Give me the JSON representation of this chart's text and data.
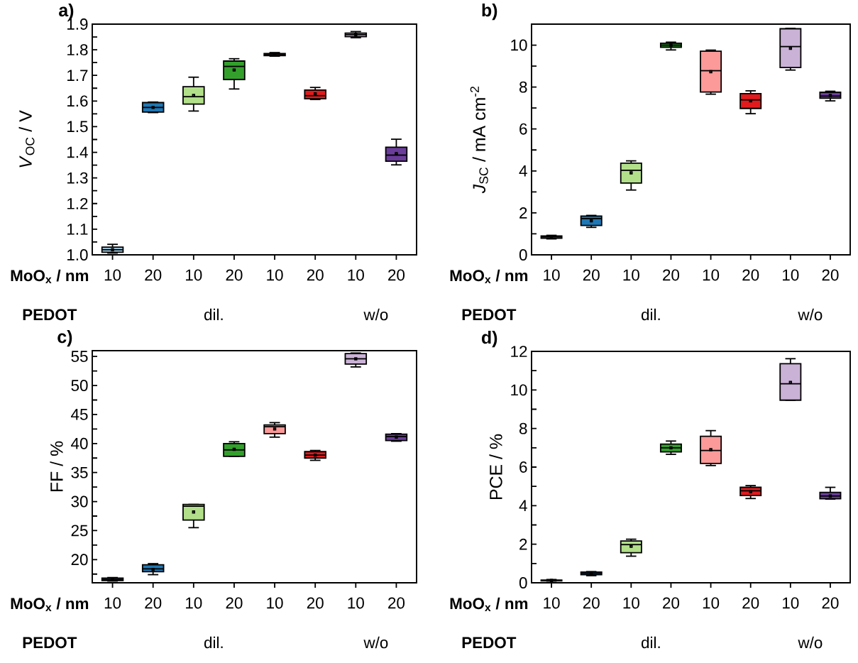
{
  "chart_data": [
    {
      "type": "box",
      "title": "a)",
      "xlabel": "MoO$_{x}$ / nm",
      "ylabel": "*V*$_{OC}$ / V",
      "categories": [
        "10",
        "20",
        "10",
        "20",
        "10",
        "20",
        "10",
        "20"
      ],
      "colors": [
        "#a6cee3",
        "#1f78b4",
        "#b2df8a",
        "#33a02c",
        "#fb9a99",
        "#e31a1c",
        "#cab2d6",
        "#6a3d9a"
      ],
      "boxes": [
        {
          "low": 1.007,
          "q1": 1.01,
          "median": 1.02,
          "q3": 1.03,
          "high": 1.041,
          "mean": 1.02
        },
        {
          "low": 1.555,
          "q1": 1.557,
          "median": 1.575,
          "q3": 1.594,
          "high": 1.596,
          "mean": 1.575
        },
        {
          "low": 1.561,
          "q1": 1.588,
          "median": 1.617,
          "q3": 1.656,
          "high": 1.693,
          "mean": 1.622
        },
        {
          "low": 1.647,
          "q1": 1.684,
          "median": 1.735,
          "q3": 1.756,
          "high": 1.765,
          "mean": 1.721
        },
        {
          "low": 1.775,
          "q1": 1.777,
          "median": 1.781,
          "q3": 1.785,
          "high": 1.789,
          "mean": 1.781
        },
        {
          "low": 1.606,
          "q1": 1.609,
          "median": 1.621,
          "q3": 1.643,
          "high": 1.653,
          "mean": 1.628
        },
        {
          "low": 1.847,
          "q1": 1.851,
          "median": 1.859,
          "q3": 1.865,
          "high": 1.871,
          "mean": 1.859
        },
        {
          "low": 1.351,
          "q1": 1.365,
          "median": 1.389,
          "q3": 1.42,
          "high": 1.451,
          "mean": 1.395
        }
      ],
      "ylim": [
        1.0,
        1.9
      ],
      "yticks": [
        {
          "value": 1.0,
          "label": "1.0"
        },
        {
          "value": 1.05,
          "label": null
        },
        1.1,
        {
          "value": 1.15,
          "label": null
        },
        1.2,
        {
          "value": 1.25,
          "label": null
        },
        1.3,
        {
          "value": 1.35,
          "label": null
        },
        1.4,
        {
          "value": 1.45,
          "label": null
        },
        1.5,
        {
          "value": 1.55,
          "label": null
        },
        1.6,
        {
          "value": 1.65,
          "label": null
        },
        1.7,
        {
          "value": 1.75,
          "label": null
        },
        1.8,
        {
          "value": 1.85,
          "label": null
        },
        1.9
      ],
      "annotations": [
        "PEDOT",
        null,
        "dil.",
        null,
        "w/o"
      ]
    },
    {
      "type": "box",
      "title": "b)",
      "xlabel": "MoO$_{x}$ / nm",
      "ylabel": "*J*$_{SC}$ / mA cm$^{-2}$",
      "categories": [
        "10",
        "20",
        "10",
        "20",
        "10",
        "20",
        "10",
        "20"
      ],
      "colors": [
        "#a6cee3",
        "#1f78b4",
        "#b2df8a",
        "#33a02c",
        "#fb9a99",
        "#e31a1c",
        "#cab2d6",
        "#6a3d9a"
      ],
      "boxes": [
        {
          "low": 0.76,
          "q1": 0.79,
          "median": 0.85,
          "q3": 0.9,
          "high": 0.93,
          "mean": 0.85
        },
        {
          "low": 1.31,
          "q1": 1.4,
          "median": 1.73,
          "q3": 1.85,
          "high": 1.88,
          "mean": 1.62
        },
        {
          "low": 3.09,
          "q1": 3.42,
          "median": 4.03,
          "q3": 4.37,
          "high": 4.48,
          "mean": 3.91
        },
        {
          "low": 9.77,
          "q1": 9.9,
          "median": 10.0,
          "q3": 10.09,
          "high": 10.14,
          "mean": 10.0
        },
        {
          "low": 7.66,
          "q1": 7.76,
          "median": 8.78,
          "q3": 9.71,
          "high": 9.76,
          "mean": 8.73
        },
        {
          "low": 6.73,
          "q1": 6.98,
          "median": 7.39,
          "q3": 7.69,
          "high": 7.82,
          "mean": 7.34
        },
        {
          "low": 8.81,
          "q1": 8.93,
          "median": 9.93,
          "q3": 10.78,
          "high": 10.8,
          "mean": 9.85
        },
        {
          "low": 7.34,
          "q1": 7.47,
          "median": 7.57,
          "q3": 7.75,
          "high": 7.8,
          "mean": 7.6
        }
      ],
      "ylim": [
        0,
        11
      ],
      "yticks": [
        0,
        {
          "value": 1,
          "label": null
        },
        2,
        {
          "value": 3,
          "label": null
        },
        4,
        {
          "value": 5,
          "label": null
        },
        6,
        {
          "value": 7,
          "label": null
        },
        8,
        {
          "value": 9,
          "label": null
        },
        10
      ],
      "annotations": [
        "PEDOT",
        null,
        "dil.",
        null,
        "w/o"
      ]
    },
    {
      "type": "box",
      "title": "c)",
      "xlabel": "MoO$_{x}$ / nm",
      "ylabel": "FF / %",
      "categories": [
        "10",
        "20",
        "10",
        "20",
        "10",
        "20",
        "10",
        "20"
      ],
      "colors": [
        "#a6cee3",
        "#1f78b4",
        "#b2df8a",
        "#33a02c",
        "#fb9a99",
        "#e31a1c",
        "#cab2d6",
        "#6a3d9a"
      ],
      "boxes": [
        {
          "low": 16.3,
          "q1": 16.4,
          "median": 16.6,
          "q3": 16.8,
          "high": 16.9,
          "mean": 16.6
        },
        {
          "low": 17.4,
          "q1": 17.9,
          "median": 18.4,
          "q3": 19.1,
          "high": 19.3,
          "mean": 18.3
        },
        {
          "low": 25.5,
          "q1": 26.8,
          "median": 29.2,
          "q3": 29.5,
          "high": 29.5,
          "mean": 28.2
        },
        {
          "low": 37.8,
          "q1": 37.8,
          "median": 38.9,
          "q3": 40.0,
          "high": 40.3,
          "mean": 39.0
        },
        {
          "low": 41.1,
          "q1": 41.7,
          "median": 42.9,
          "q3": 43.2,
          "high": 43.6,
          "mean": 42.5
        },
        {
          "low": 37.1,
          "q1": 37.5,
          "median": 38.0,
          "q3": 38.6,
          "high": 38.8,
          "mean": 38.0
        },
        {
          "low": 53.2,
          "q1": 53.7,
          "median": 54.6,
          "q3": 55.5,
          "high": 55.6,
          "mean": 54.6
        },
        {
          "low": 40.4,
          "q1": 40.5,
          "median": 41.2,
          "q3": 41.6,
          "high": 41.7,
          "mean": 41.1
        }
      ],
      "ylim": [
        16,
        56
      ],
      "yticks": [
        {
          "value": 17.5,
          "label": null
        },
        20,
        {
          "value": 22.5,
          "label": null
        },
        25,
        {
          "value": 27.5,
          "label": null
        },
        30,
        {
          "value": 32.5,
          "label": null
        },
        35,
        {
          "value": 37.5,
          "label": null
        },
        40,
        {
          "value": 42.5,
          "label": null
        },
        45,
        {
          "value": 47.5,
          "label": null
        },
        50,
        {
          "value": 52.5,
          "label": null
        },
        55
      ],
      "annotations": [
        "PEDOT",
        null,
        "dil.",
        null,
        "w/o"
      ]
    },
    {
      "type": "box",
      "title": "d)",
      "xlabel": "MoO$_{x}$ / nm",
      "ylabel": "PCE / %",
      "categories": [
        "10",
        "20",
        "10",
        "20",
        "10",
        "20",
        "10",
        "20"
      ],
      "colors": [
        "#a6cee3",
        "#1f78b4",
        "#b2df8a",
        "#33a02c",
        "#fb9a99",
        "#e31a1c",
        "#cab2d6",
        "#6a3d9a"
      ],
      "boxes": [
        {
          "low": 0.09,
          "q1": 0.1,
          "median": 0.12,
          "q3": 0.14,
          "high": 0.17,
          "mean": 0.12
        },
        {
          "low": 0.37,
          "q1": 0.42,
          "median": 0.49,
          "q3": 0.56,
          "high": 0.58,
          "mean": 0.49
        },
        {
          "low": 1.38,
          "q1": 1.56,
          "median": 1.98,
          "q3": 2.17,
          "high": 2.26,
          "mean": 1.89
        },
        {
          "low": 6.66,
          "q1": 6.79,
          "median": 7.0,
          "q3": 7.19,
          "high": 7.35,
          "mean": 7.0
        },
        {
          "low": 6.08,
          "q1": 6.19,
          "median": 6.86,
          "q3": 7.6,
          "high": 7.89,
          "mean": 6.9
        },
        {
          "low": 4.37,
          "q1": 4.52,
          "median": 4.77,
          "q3": 4.95,
          "high": 5.04,
          "mean": 4.72
        },
        {
          "low": 9.47,
          "q1": 9.47,
          "median": 10.32,
          "q3": 11.36,
          "high": 11.62,
          "mean": 10.39
        },
        {
          "low": 4.34,
          "q1": 4.36,
          "median": 4.5,
          "q3": 4.69,
          "high": 4.95,
          "mean": 4.5
        }
      ],
      "ylim": [
        0,
        12
      ],
      "yticks": [
        0,
        {
          "value": 1,
          "label": null
        },
        2,
        {
          "value": 3,
          "label": null
        },
        4,
        {
          "value": 5,
          "label": null
        },
        6,
        {
          "value": 7,
          "label": null
        },
        8,
        {
          "value": 9,
          "label": null
        },
        10,
        {
          "value": 11,
          "label": null
        },
        12
      ],
      "annotations": [
        "PEDOT",
        null,
        "dil.",
        null,
        "w/o"
      ]
    }
  ]
}
